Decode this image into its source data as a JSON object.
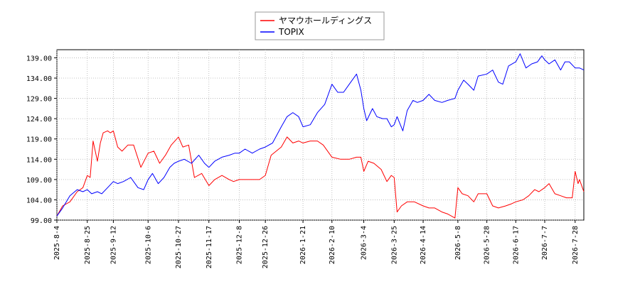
{
  "chart_data": {
    "type": "line",
    "title": "",
    "xlabel": "",
    "ylabel": "",
    "ylim": [
      99.0,
      141.0
    ],
    "grid": true,
    "legend_position": "top-center",
    "ytick_labels": [
      "99.00",
      "104.00",
      "109.00",
      "114.00",
      "119.00",
      "124.00",
      "129.00",
      "134.00",
      "139.00"
    ],
    "xtick_labels": [
      "2025-8-4",
      "2025-8-25",
      "2025-9-12",
      "2025-10-6",
      "2025-10-27",
      "2025-11-17",
      "2025-12-8",
      "2025-12-26",
      "2026-1-21",
      "2026-2-10",
      "2026-3-4",
      "2026-3-25",
      "2026-4-14",
      "2026-5-8",
      "2026-5-28",
      "2026-6-17",
      "2026-7-7",
      "2026-7-28"
    ],
    "series": [
      {
        "name": "ヤマウホールディングス",
        "color": "#ff0000",
        "points": [
          [
            "2025-8-4",
            100.0
          ],
          [
            "2025-8-8",
            102.5
          ],
          [
            "2025-8-13",
            103.5
          ],
          [
            "2025-8-18",
            106.0
          ],
          [
            "2025-8-22",
            107.0
          ],
          [
            "2025-8-25",
            110.0
          ],
          [
            "2025-8-27",
            109.5
          ],
          [
            "2025-8-29",
            118.5
          ],
          [
            "2025-9-1",
            113.5
          ],
          [
            "2025-9-3",
            118.0
          ],
          [
            "2025-9-5",
            120.5
          ],
          [
            "2025-9-8",
            121.0
          ],
          [
            "2025-9-10",
            120.5
          ],
          [
            "2025-9-12",
            121.0
          ],
          [
            "2025-9-15",
            117.0
          ],
          [
            "2025-9-18",
            116.0
          ],
          [
            "2025-9-22",
            117.5
          ],
          [
            "2025-9-26",
            117.5
          ],
          [
            "2025-10-1",
            112.0
          ],
          [
            "2025-10-6",
            115.5
          ],
          [
            "2025-10-10",
            116.0
          ],
          [
            "2025-10-14",
            113.0
          ],
          [
            "2025-10-18",
            115.0
          ],
          [
            "2025-10-22",
            117.5
          ],
          [
            "2025-10-27",
            119.5
          ],
          [
            "2025-10-30",
            117.0
          ],
          [
            "2025-11-3",
            117.5
          ],
          [
            "2025-11-7",
            109.5
          ],
          [
            "2025-11-12",
            110.5
          ],
          [
            "2025-11-17",
            107.5
          ],
          [
            "2025-11-21",
            109.0
          ],
          [
            "2025-11-26",
            110.0
          ],
          [
            "2025-12-1",
            109.0
          ],
          [
            "2025-12-4",
            108.5
          ],
          [
            "2025-12-8",
            109.0
          ],
          [
            "2025-12-12",
            109.0
          ],
          [
            "2025-12-17",
            109.0
          ],
          [
            "2025-12-22",
            109.0
          ],
          [
            "2025-12-26",
            110.0
          ],
          [
            "2025-12-30",
            115.0
          ],
          [
            "2026-1-6",
            117.0
          ],
          [
            "2026-1-10",
            119.5
          ],
          [
            "2026-1-14",
            118.0
          ],
          [
            "2026-1-18",
            118.5
          ],
          [
            "2026-1-21",
            118.0
          ],
          [
            "2026-1-26",
            118.5
          ],
          [
            "2026-1-31",
            118.5
          ],
          [
            "2026-2-4",
            117.5
          ],
          [
            "2026-2-10",
            114.5
          ],
          [
            "2026-2-16",
            114.0
          ],
          [
            "2026-2-22",
            114.0
          ],
          [
            "2026-2-27",
            114.5
          ],
          [
            "2026-3-2",
            114.5
          ],
          [
            "2026-3-4",
            111.0
          ],
          [
            "2026-3-7",
            113.5
          ],
          [
            "2026-3-11",
            113.0
          ],
          [
            "2026-3-16",
            111.5
          ],
          [
            "2026-3-20",
            108.5
          ],
          [
            "2026-3-23",
            110.0
          ],
          [
            "2026-3-25",
            109.5
          ],
          [
            "2026-3-27",
            101.0
          ],
          [
            "2026-3-30",
            102.5
          ],
          [
            "2026-4-3",
            103.5
          ],
          [
            "2026-4-8",
            103.5
          ],
          [
            "2026-4-14",
            102.5
          ],
          [
            "2026-4-18",
            102.0
          ],
          [
            "2026-4-22",
            102.0
          ],
          [
            "2026-4-27",
            101.0
          ],
          [
            "2026-5-1",
            100.5
          ],
          [
            "2026-5-6",
            99.5
          ],
          [
            "2026-5-8",
            107.0
          ],
          [
            "2026-5-11",
            105.5
          ],
          [
            "2026-5-15",
            105.0
          ],
          [
            "2026-5-19",
            103.5
          ],
          [
            "2026-5-22",
            105.5
          ],
          [
            "2026-5-28",
            105.5
          ],
          [
            "2026-6-1",
            102.5
          ],
          [
            "2026-6-5",
            102.0
          ],
          [
            "2026-6-10",
            102.5
          ],
          [
            "2026-6-14",
            103.0
          ],
          [
            "2026-6-17",
            103.5
          ],
          [
            "2026-6-22",
            104.0
          ],
          [
            "2026-6-26",
            105.0
          ],
          [
            "2026-6-30",
            106.5
          ],
          [
            "2026-7-3",
            106.0
          ],
          [
            "2026-7-7",
            107.0
          ],
          [
            "2026-7-10",
            108.0
          ],
          [
            "2026-7-14",
            105.5
          ],
          [
            "2026-7-18",
            105.0
          ],
          [
            "2026-7-22",
            104.5
          ],
          [
            "2026-7-26",
            104.5
          ],
          [
            "2026-7-28",
            111.0
          ],
          [
            "2026-7-30",
            108.0
          ],
          [
            "2026-7-31",
            109.0
          ],
          [
            "2026-8-3",
            106.0
          ]
        ]
      },
      {
        "name": "TOPIX",
        "color": "#0000ff",
        "points": [
          [
            "2025-8-4",
            100.0
          ],
          [
            "2025-8-8",
            102.0
          ],
          [
            "2025-8-13",
            105.0
          ],
          [
            "2025-8-18",
            106.5
          ],
          [
            "2025-8-22",
            106.0
          ],
          [
            "2025-8-25",
            106.5
          ],
          [
            "2025-8-28",
            105.5
          ],
          [
            "2025-9-1",
            106.0
          ],
          [
            "2025-9-4",
            105.5
          ],
          [
            "2025-9-8",
            107.0
          ],
          [
            "2025-9-12",
            108.5
          ],
          [
            "2025-9-15",
            108.0
          ],
          [
            "2025-9-19",
            108.5
          ],
          [
            "2025-9-24",
            109.5
          ],
          [
            "2025-9-29",
            107.0
          ],
          [
            "2025-10-3",
            106.5
          ],
          [
            "2025-10-6",
            109.0
          ],
          [
            "2025-10-9",
            110.5
          ],
          [
            "2025-10-13",
            108.0
          ],
          [
            "2025-10-17",
            109.5
          ],
          [
            "2025-10-21",
            112.0
          ],
          [
            "2025-10-24",
            113.0
          ],
          [
            "2025-10-27",
            113.5
          ],
          [
            "2025-10-31",
            114.0
          ],
          [
            "2025-11-5",
            113.0
          ],
          [
            "2025-11-10",
            115.0
          ],
          [
            "2025-11-14",
            113.0
          ],
          [
            "2025-11-17",
            112.0
          ],
          [
            "2025-11-21",
            113.5
          ],
          [
            "2025-11-26",
            114.5
          ],
          [
            "2025-12-1",
            115.0
          ],
          [
            "2025-12-5",
            115.5
          ],
          [
            "2025-12-8",
            115.5
          ],
          [
            "2025-12-12",
            116.5
          ],
          [
            "2025-12-17",
            115.5
          ],
          [
            "2025-12-22",
            116.5
          ],
          [
            "2025-12-26",
            117.0
          ],
          [
            "2025-12-31",
            118.0
          ],
          [
            "2026-1-6",
            122.0
          ],
          [
            "2026-1-10",
            124.5
          ],
          [
            "2026-1-14",
            125.5
          ],
          [
            "2026-1-18",
            124.5
          ],
          [
            "2026-1-21",
            122.0
          ],
          [
            "2026-1-26",
            122.5
          ],
          [
            "2026-1-31",
            125.5
          ],
          [
            "2026-2-5",
            127.5
          ],
          [
            "2026-2-10",
            132.5
          ],
          [
            "2026-2-14",
            130.5
          ],
          [
            "2026-2-18",
            130.5
          ],
          [
            "2026-2-22",
            132.5
          ],
          [
            "2026-2-27",
            135.0
          ],
          [
            "2026-3-2",
            131.0
          ],
          [
            "2026-3-4",
            126.5
          ],
          [
            "2026-3-6",
            123.5
          ],
          [
            "2026-3-10",
            126.5
          ],
          [
            "2026-3-13",
            124.5
          ],
          [
            "2026-3-17",
            124.0
          ],
          [
            "2026-3-20",
            124.0
          ],
          [
            "2026-3-23",
            122.0
          ],
          [
            "2026-3-25",
            122.5
          ],
          [
            "2026-3-27",
            124.5
          ],
          [
            "2026-3-31",
            121.0
          ],
          [
            "2026-4-3",
            126.0
          ],
          [
            "2026-4-7",
            128.5
          ],
          [
            "2026-4-10",
            128.0
          ],
          [
            "2026-4-14",
            128.5
          ],
          [
            "2026-4-18",
            130.0
          ],
          [
            "2026-4-22",
            128.5
          ],
          [
            "2026-4-27",
            128.0
          ],
          [
            "2026-5-1",
            128.5
          ],
          [
            "2026-5-6",
            129.0
          ],
          [
            "2026-5-8",
            131.0
          ],
          [
            "2026-5-12",
            133.5
          ],
          [
            "2026-5-15",
            132.5
          ],
          [
            "2026-5-19",
            131.0
          ],
          [
            "2026-5-22",
            134.5
          ],
          [
            "2026-5-28",
            135.0
          ],
          [
            "2026-6-1",
            136.0
          ],
          [
            "2026-6-5",
            133.0
          ],
          [
            "2026-6-8",
            132.5
          ],
          [
            "2026-6-12",
            137.0
          ],
          [
            "2026-6-17",
            138.0
          ],
          [
            "2026-6-20",
            140.0
          ],
          [
            "2026-6-24",
            136.5
          ],
          [
            "2026-6-28",
            137.5
          ],
          [
            "2026-7-2",
            138.0
          ],
          [
            "2026-7-5",
            139.5
          ],
          [
            "2026-7-7",
            138.5
          ],
          [
            "2026-7-10",
            137.5
          ],
          [
            "2026-7-14",
            138.5
          ],
          [
            "2026-7-18",
            136.0
          ],
          [
            "2026-7-21",
            138.0
          ],
          [
            "2026-7-24",
            138.0
          ],
          [
            "2026-7-28",
            136.5
          ],
          [
            "2026-7-31",
            136.5
          ],
          [
            "2026-8-3",
            136.0
          ]
        ]
      }
    ]
  }
}
